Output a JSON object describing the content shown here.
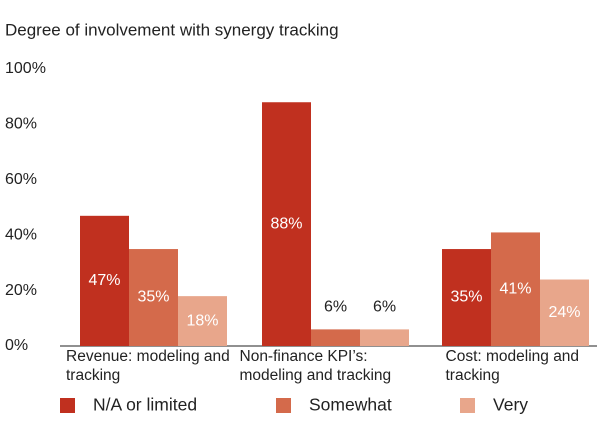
{
  "chart_data": {
    "type": "bar",
    "title": "Degree of involvement with synergy tracking",
    "categories": [
      "Revenue: modeling and tracking",
      "Non-finance KPI’s: modeling and tracking",
      "Cost: modeling and tracking"
    ],
    "series": [
      {
        "name": "N/A or limited",
        "color": "#c0301f",
        "values": [
          47,
          88,
          35
        ],
        "value_labels": [
          "47%",
          "88%",
          "35%"
        ]
      },
      {
        "name": "Somewhat",
        "color": "#d46a4b",
        "values": [
          35,
          6,
          41
        ],
        "value_labels": [
          "35%",
          "6%",
          "41%"
        ]
      },
      {
        "name": "Very",
        "color": "#e8a68b",
        "values": [
          18,
          6,
          24
        ],
        "value_labels": [
          "18%",
          "6%",
          "24%"
        ]
      }
    ],
    "ylim": [
      0,
      100
    ],
    "yticks": [
      {
        "value": 0,
        "label": "0%"
      },
      {
        "value": 20,
        "label": "20%"
      },
      {
        "value": 40,
        "label": "40%"
      },
      {
        "value": 60,
        "label": "60%"
      },
      {
        "value": 80,
        "label": "80%"
      },
      {
        "value": 100,
        "label": "100%"
      }
    ],
    "grid": false,
    "legend": "bottom"
  }
}
